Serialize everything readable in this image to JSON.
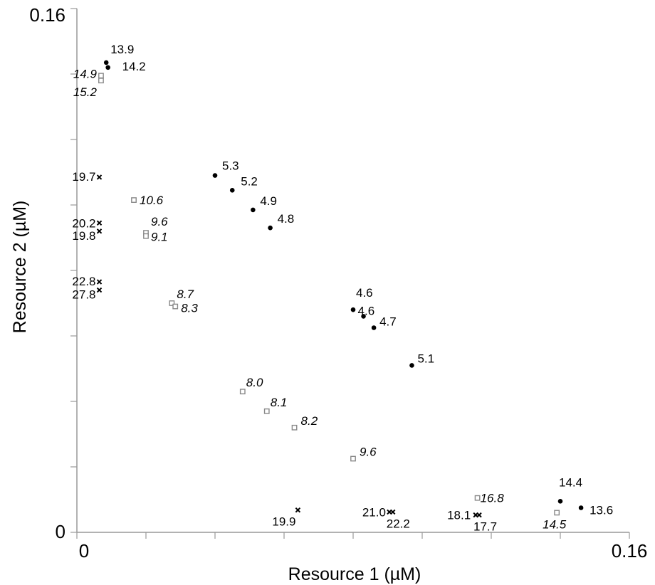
{
  "chart_data": {
    "type": "scatter",
    "title": "",
    "xlabel": "Resource 1 (µM)",
    "ylabel": "Resource 2 (µM)",
    "xlim": [
      0,
      0.16
    ],
    "ylim": [
      0,
      0.16
    ],
    "x_tick_labels": [
      "0",
      "0.16"
    ],
    "y_tick_labels": [
      "0",
      "0.16"
    ],
    "grid": false,
    "series": [
      {
        "marker": "filled-circle",
        "color": "#000000",
        "label_style": "normal",
        "points": [
          {
            "x": 0.0085,
            "y": 0.1435,
            "label": "13.9"
          },
          {
            "x": 0.009,
            "y": 0.142,
            "label": "14.2"
          },
          {
            "x": 0.04,
            "y": 0.109,
            "label": "5.3"
          },
          {
            "x": 0.045,
            "y": 0.1045,
            "label": "5.2"
          },
          {
            "x": 0.051,
            "y": 0.0985,
            "label": "4.9"
          },
          {
            "x": 0.056,
            "y": 0.093,
            "label": "4.8"
          },
          {
            "x": 0.08,
            "y": 0.068,
            "label": "4.6"
          },
          {
            "x": 0.083,
            "y": 0.066,
            "label": "4.6"
          },
          {
            "x": 0.086,
            "y": 0.0625,
            "label": "4.7"
          },
          {
            "x": 0.097,
            "y": 0.051,
            "label": "5.1"
          },
          {
            "x": 0.14,
            "y": 0.0095,
            "label": "14.4"
          },
          {
            "x": 0.146,
            "y": 0.0075,
            "label": "13.6"
          }
        ]
      },
      {
        "marker": "open-square",
        "color": "#888888",
        "label_style": "italic",
        "points": [
          {
            "x": 0.007,
            "y": 0.1395,
            "label": "14.9"
          },
          {
            "x": 0.007,
            "y": 0.138,
            "label": "15.2"
          },
          {
            "x": 0.0165,
            "y": 0.1015,
            "label": "10.6"
          },
          {
            "x": 0.02,
            "y": 0.0915,
            "label": "9.6"
          },
          {
            "x": 0.02,
            "y": 0.0905,
            "label": "9.1"
          },
          {
            "x": 0.0275,
            "y": 0.07,
            "label": "8.7"
          },
          {
            "x": 0.0285,
            "y": 0.069,
            "label": "8.3"
          },
          {
            "x": 0.048,
            "y": 0.043,
            "label": "8.0"
          },
          {
            "x": 0.055,
            "y": 0.037,
            "label": "8.1"
          },
          {
            "x": 0.063,
            "y": 0.032,
            "label": "8.2"
          },
          {
            "x": 0.08,
            "y": 0.0225,
            "label": "9.6"
          },
          {
            "x": 0.116,
            "y": 0.0105,
            "label": "16.8"
          },
          {
            "x": 0.139,
            "y": 0.006,
            "label": "14.5"
          }
        ]
      },
      {
        "marker": "small-x",
        "color": "#000000",
        "label_style": "normal",
        "points": [
          {
            "x": 0.0065,
            "y": 0.1085,
            "label": "19.7"
          },
          {
            "x": 0.0065,
            "y": 0.0945,
            "label": "20.2"
          },
          {
            "x": 0.0065,
            "y": 0.092,
            "label": "19.8"
          },
          {
            "x": 0.0065,
            "y": 0.0765,
            "label": "22.8"
          },
          {
            "x": 0.0065,
            "y": 0.074,
            "label": "27.8"
          },
          {
            "x": 0.064,
            "y": 0.0068,
            "label": "19.9"
          },
          {
            "x": 0.0905,
            "y": 0.0062,
            "label": "21.0"
          },
          {
            "x": 0.0915,
            "y": 0.0062,
            "label": "22.2"
          },
          {
            "x": 0.1155,
            "y": 0.0053,
            "label": "18.1"
          },
          {
            "x": 0.1165,
            "y": 0.0053,
            "label": "17.7"
          }
        ]
      }
    ]
  }
}
